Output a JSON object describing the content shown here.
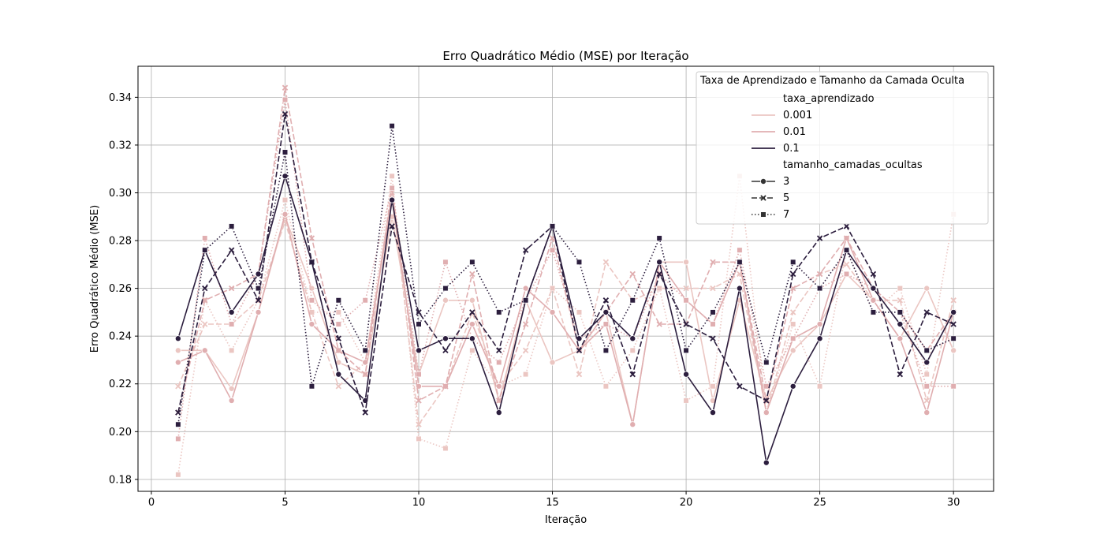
{
  "chart_data": {
    "type": "line",
    "title": "Erro Quadrático Médio (MSE) por Iteração",
    "xlabel": "Iteração",
    "ylabel": "Erro Quadrático Médio (MSE)",
    "xlim": [
      -0.5,
      31.5
    ],
    "ylim": [
      0.175,
      0.353
    ],
    "xticks": [
      0,
      5,
      10,
      15,
      20,
      25,
      30
    ],
    "yticks": [
      0.18,
      0.2,
      0.22,
      0.24,
      0.26,
      0.28,
      0.3,
      0.32,
      0.34
    ],
    "grid": true,
    "legend": {
      "title": "Taxa de Aprendizado e Tamanho da Camada Oculta",
      "placement": "top-right",
      "hue_title": "taxa_aprendizado",
      "hue_entries": [
        {
          "label": "0.001",
          "color": "#ebc6c2"
        },
        {
          "label": "0.01",
          "color": "#e0aeb0"
        },
        {
          "label": "0.1",
          "color": "#2c1e3e"
        }
      ],
      "style_title": "tamanho_camadas_ocultas",
      "style_entries": [
        {
          "label": "3",
          "marker": "circle",
          "dash": "solid"
        },
        {
          "label": "5",
          "marker": "x",
          "dash": "dashed"
        },
        {
          "label": "7",
          "marker": "square",
          "dash": "dotted"
        }
      ]
    },
    "x": [
      1,
      2,
      3,
      4,
      5,
      6,
      7,
      8,
      9,
      10,
      11,
      12,
      13,
      14,
      15,
      16,
      17,
      18,
      19,
      20,
      21,
      22,
      23,
      24,
      25,
      26,
      27,
      28,
      29,
      30
    ],
    "series": [
      {
        "taxa": "0.001",
        "camadas": "3",
        "color": "#ebc6c2",
        "marker": "circle",
        "dash": "solid",
        "values": [
          0.234,
          0.234,
          0.218,
          0.25,
          0.29,
          0.26,
          0.229,
          0.224,
          0.29,
          0.224,
          0.255,
          0.255,
          0.213,
          0.255,
          0.229,
          0.234,
          0.25,
          0.203,
          0.271,
          0.271,
          0.213,
          0.255,
          0.213,
          0.234,
          0.245,
          0.266,
          0.255,
          0.239,
          0.26,
          0.234
        ]
      },
      {
        "taxa": "0.001",
        "camadas": "5",
        "color": "#ebc6c2",
        "marker": "x",
        "dash": "dashed",
        "values": [
          0.219,
          0.245,
          0.245,
          0.255,
          0.288,
          0.25,
          0.219,
          0.229,
          0.3,
          0.203,
          0.219,
          0.25,
          0.219,
          0.234,
          0.26,
          0.224,
          0.271,
          0.255,
          0.26,
          0.26,
          0.26,
          0.266,
          0.208,
          0.25,
          0.266,
          0.27,
          0.255,
          0.255,
          0.213,
          0.255
        ]
      },
      {
        "taxa": "0.001",
        "camadas": "7",
        "color": "#ebc6c2",
        "marker": "square",
        "dash": "dotted",
        "values": [
          0.182,
          0.255,
          0.234,
          0.255,
          0.297,
          0.25,
          0.25,
          0.229,
          0.307,
          0.197,
          0.193,
          0.234,
          0.219,
          0.224,
          0.26,
          0.25,
          0.219,
          0.234,
          0.26,
          0.213,
          0.219,
          0.307,
          0.208,
          0.245,
          0.219,
          0.276,
          0.25,
          0.26,
          0.224,
          0.291
        ]
      },
      {
        "taxa": "0.01",
        "camadas": "3",
        "color": "#e0aeb0",
        "marker": "circle",
        "dash": "solid",
        "values": [
          0.229,
          0.234,
          0.213,
          0.25,
          0.291,
          0.245,
          0.234,
          0.229,
          0.297,
          0.219,
          0.219,
          0.245,
          0.219,
          0.26,
          0.25,
          0.234,
          0.245,
          0.203,
          0.271,
          0.255,
          0.245,
          0.271,
          0.208,
          0.239,
          0.245,
          0.281,
          0.255,
          0.239,
          0.208,
          0.25
        ]
      },
      {
        "taxa": "0.01",
        "camadas": "5",
        "color": "#e0aeb0",
        "marker": "x",
        "dash": "dashed",
        "values": [
          0.208,
          0.255,
          0.26,
          0.266,
          0.344,
          0.281,
          0.234,
          0.224,
          0.302,
          0.213,
          0.219,
          0.266,
          0.213,
          0.245,
          0.281,
          0.234,
          0.25,
          0.266,
          0.245,
          0.245,
          0.271,
          0.271,
          0.213,
          0.26,
          0.266,
          0.281,
          0.26,
          0.25,
          0.234,
          0.25
        ]
      },
      {
        "taxa": "0.01",
        "camadas": "7",
        "color": "#e0aeb0",
        "marker": "square",
        "dash": "dotted",
        "values": [
          0.197,
          0.281,
          0.245,
          0.266,
          0.339,
          0.255,
          0.245,
          0.255,
          0.302,
          0.224,
          0.271,
          0.239,
          0.229,
          0.255,
          0.276,
          0.239,
          0.245,
          0.239,
          0.266,
          0.255,
          0.245,
          0.276,
          0.219,
          0.239,
          0.26,
          0.266,
          0.26,
          0.25,
          0.219,
          0.219
        ]
      },
      {
        "taxa": "0.1",
        "camadas": "3",
        "color": "#2c1e3e",
        "marker": "circle",
        "dash": "solid",
        "values": [
          0.239,
          0.276,
          0.25,
          0.266,
          0.307,
          0.271,
          0.224,
          0.213,
          0.297,
          0.234,
          0.239,
          0.239,
          0.208,
          0.255,
          0.286,
          0.239,
          0.25,
          0.239,
          0.271,
          0.224,
          0.208,
          0.26,
          0.187,
          0.219,
          0.239,
          0.276,
          0.26,
          0.245,
          0.229,
          0.25
        ]
      },
      {
        "taxa": "0.1",
        "camadas": "5",
        "color": "#2c1e3e",
        "marker": "x",
        "dash": "dashed",
        "values": [
          0.208,
          0.26,
          0.276,
          0.255,
          0.333,
          0.271,
          0.239,
          0.208,
          0.286,
          0.25,
          0.234,
          0.25,
          0.234,
          0.276,
          0.286,
          0.234,
          0.255,
          0.224,
          0.266,
          0.245,
          0.239,
          0.219,
          0.213,
          0.266,
          0.281,
          0.286,
          0.266,
          0.224,
          0.25,
          0.245
        ]
      },
      {
        "taxa": "0.1",
        "camadas": "7",
        "color": "#2c1e3e",
        "marker": "square",
        "dash": "dotted",
        "values": [
          0.203,
          0.276,
          0.286,
          0.26,
          0.317,
          0.219,
          0.255,
          0.234,
          0.328,
          0.245,
          0.26,
          0.271,
          0.25,
          0.255,
          0.286,
          0.271,
          0.234,
          0.255,
          0.281,
          0.234,
          0.25,
          0.271,
          0.229,
          0.271,
          0.26,
          0.276,
          0.25,
          0.25,
          0.234,
          0.239
        ]
      }
    ]
  }
}
